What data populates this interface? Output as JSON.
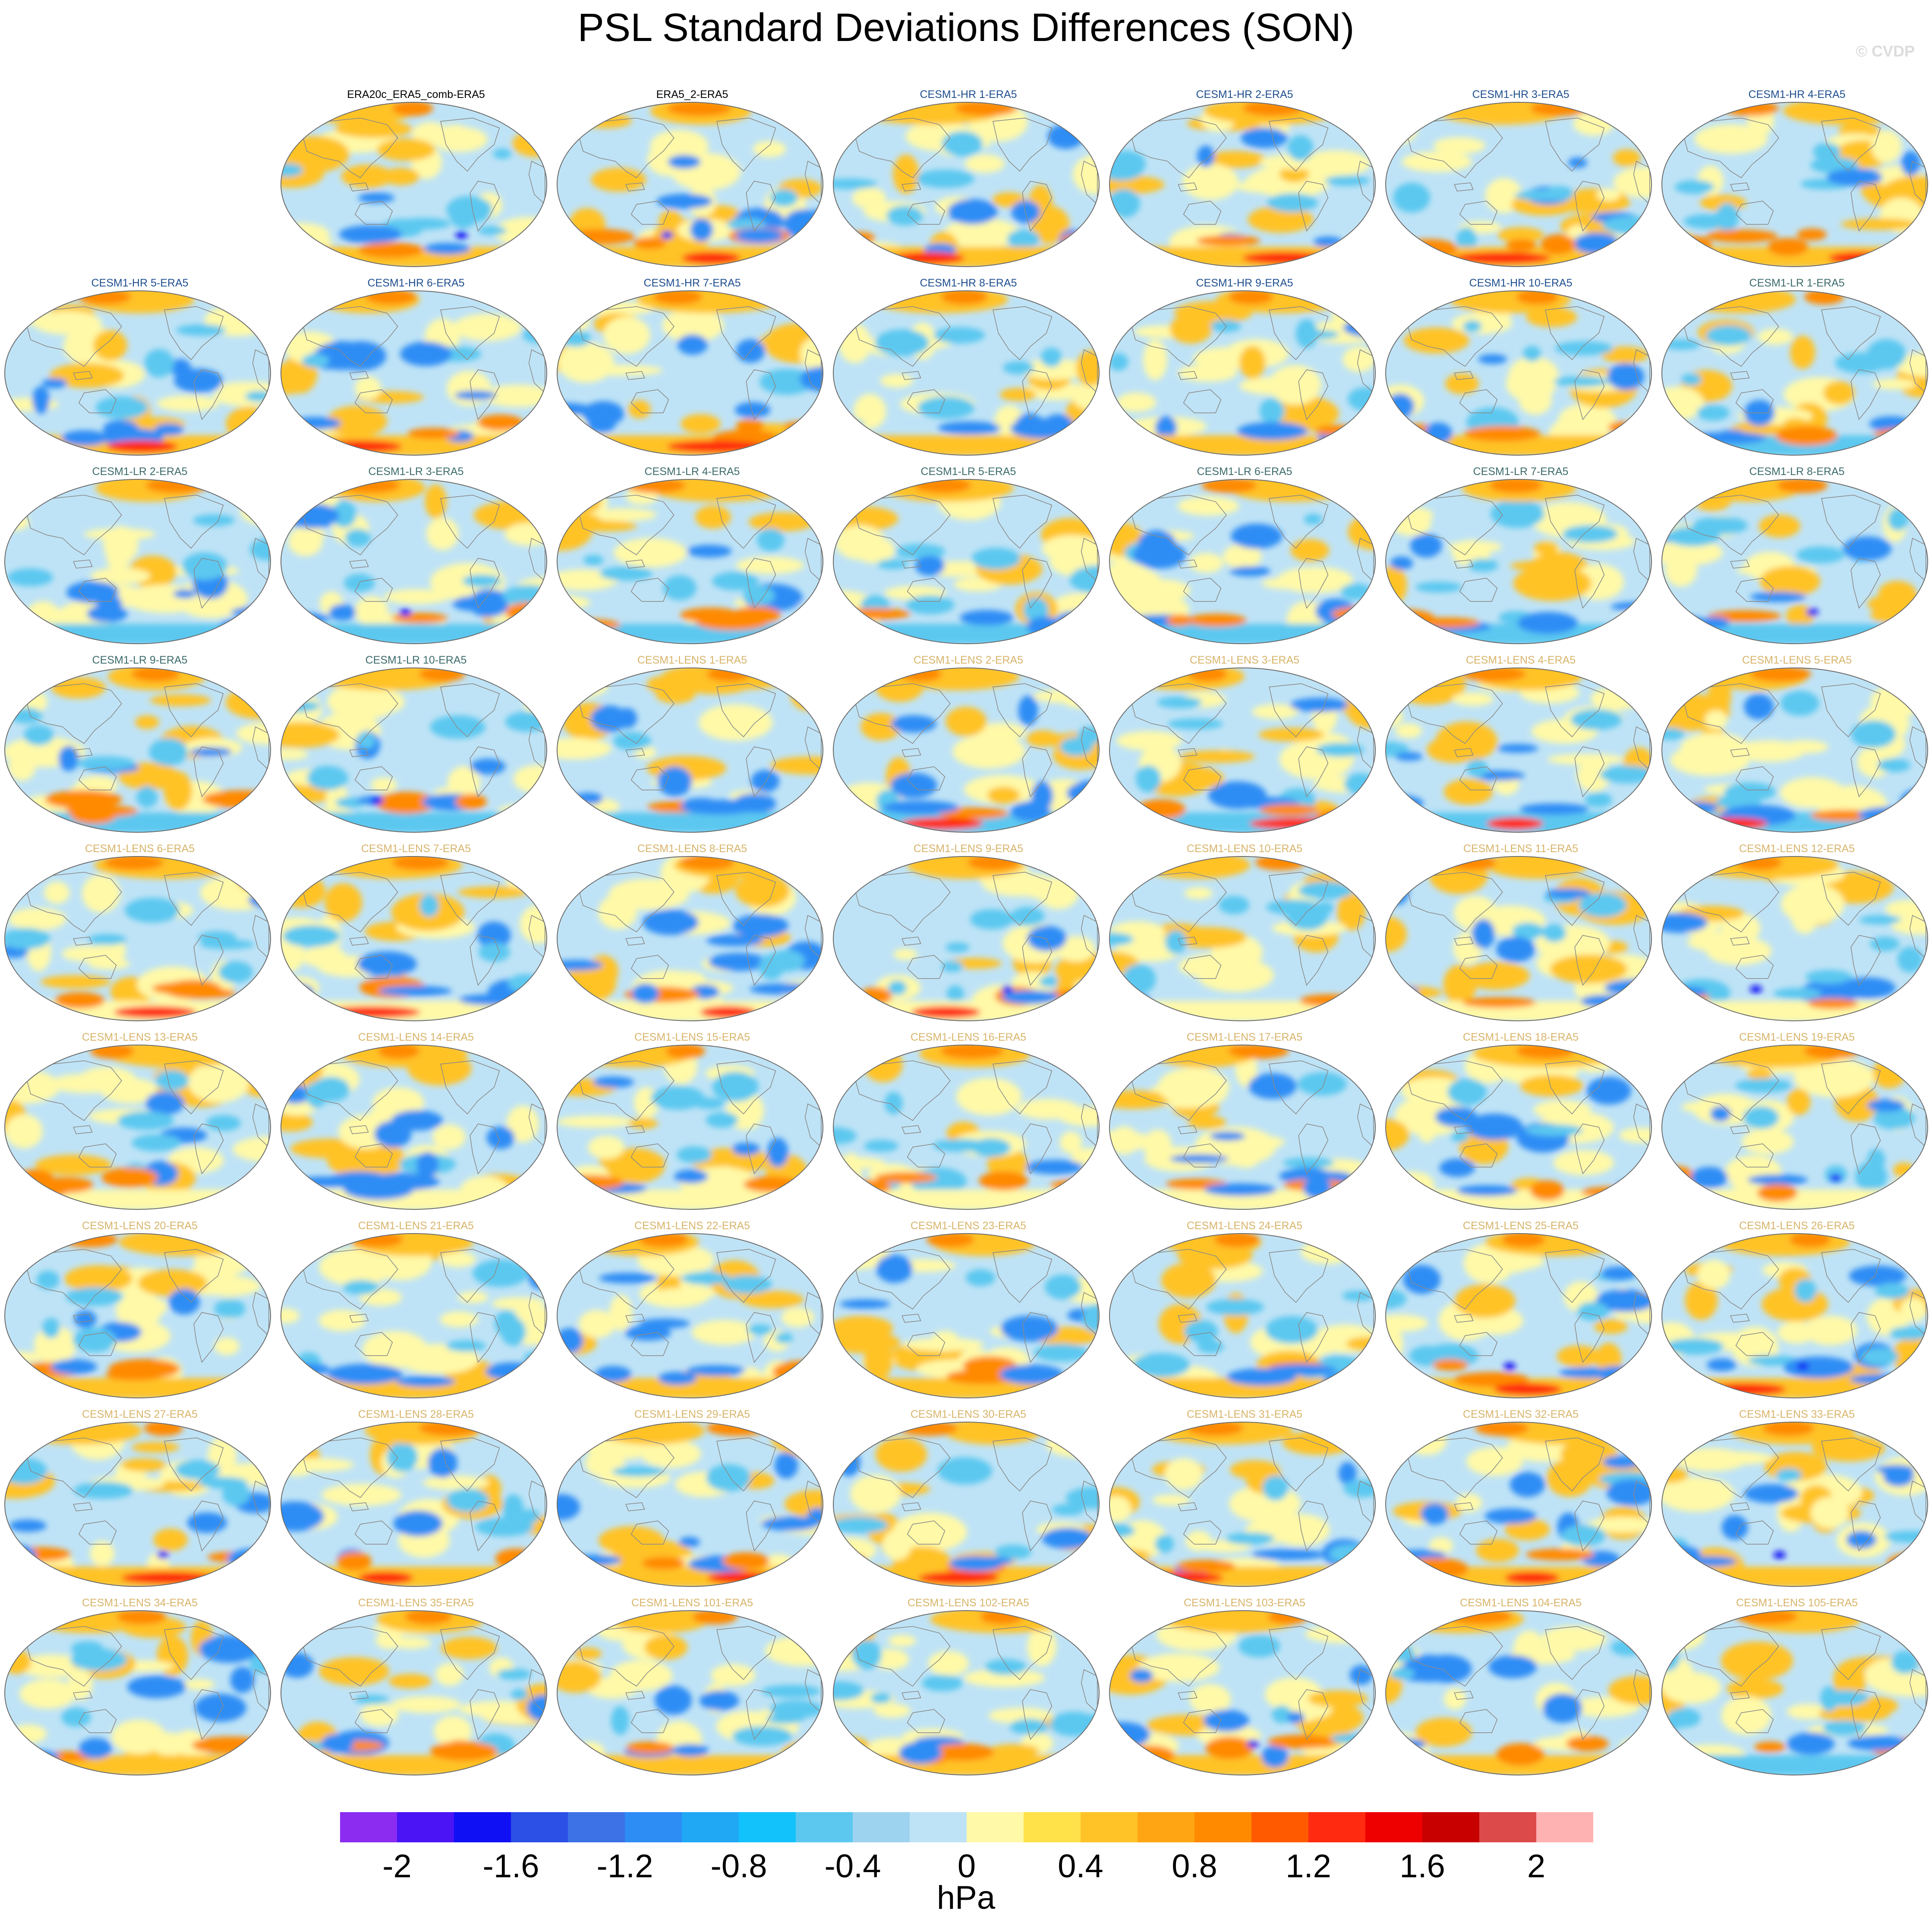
{
  "title": "PSL Standard Deviations Differences (SON)",
  "watermark": "© CVDP",
  "label_colors": {
    "obs": "#000000",
    "hr": "#1f4f8f",
    "lr": "#3d6b6b",
    "lens": "#d8b46a"
  },
  "panels": [
    {
      "label": "ERA20c_ERA5_comb-ERA5",
      "group": "obs",
      "row": 0,
      "col": 1
    },
    {
      "label": "ERA5_2-ERA5",
      "group": "obs",
      "row": 0,
      "col": 2
    },
    {
      "label": "CESM1-HR 1-ERA5",
      "group": "hr",
      "row": 0,
      "col": 3
    },
    {
      "label": "CESM1-HR 2-ERA5",
      "group": "hr",
      "row": 0,
      "col": 4
    },
    {
      "label": "CESM1-HR 3-ERA5",
      "group": "hr",
      "row": 0,
      "col": 5
    },
    {
      "label": "CESM1-HR 4-ERA5",
      "group": "hr",
      "row": 0,
      "col": 6
    },
    {
      "label": "CESM1-HR 5-ERA5",
      "group": "hr",
      "row": 1,
      "col": 0
    },
    {
      "label": "CESM1-HR 6-ERA5",
      "group": "hr",
      "row": 1,
      "col": 1
    },
    {
      "label": "CESM1-HR 7-ERA5",
      "group": "hr",
      "row": 1,
      "col": 2
    },
    {
      "label": "CESM1-HR 8-ERA5",
      "group": "hr",
      "row": 1,
      "col": 3
    },
    {
      "label": "CESM1-HR 9-ERA5",
      "group": "hr",
      "row": 1,
      "col": 4
    },
    {
      "label": "CESM1-HR 10-ERA5",
      "group": "hr",
      "row": 1,
      "col": 5
    },
    {
      "label": "CESM1-LR 1-ERA5",
      "group": "lr",
      "row": 1,
      "col": 6
    },
    {
      "label": "CESM1-LR 2-ERA5",
      "group": "lr",
      "row": 2,
      "col": 0
    },
    {
      "label": "CESM1-LR 3-ERA5",
      "group": "lr",
      "row": 2,
      "col": 1
    },
    {
      "label": "CESM1-LR 4-ERA5",
      "group": "lr",
      "row": 2,
      "col": 2
    },
    {
      "label": "CESM1-LR 5-ERA5",
      "group": "lr",
      "row": 2,
      "col": 3
    },
    {
      "label": "CESM1-LR 6-ERA5",
      "group": "lr",
      "row": 2,
      "col": 4
    },
    {
      "label": "CESM1-LR 7-ERA5",
      "group": "lr",
      "row": 2,
      "col": 5
    },
    {
      "label": "CESM1-LR 8-ERA5",
      "group": "lr",
      "row": 2,
      "col": 6
    },
    {
      "label": "CESM1-LR 9-ERA5",
      "group": "lr",
      "row": 3,
      "col": 0
    },
    {
      "label": "CESM1-LR 10-ERA5",
      "group": "lr",
      "row": 3,
      "col": 1
    },
    {
      "label": "CESM1-LENS 1-ERA5",
      "group": "lens",
      "row": 3,
      "col": 2
    },
    {
      "label": "CESM1-LENS 2-ERA5",
      "group": "lens",
      "row": 3,
      "col": 3
    },
    {
      "label": "CESM1-LENS 3-ERA5",
      "group": "lens",
      "row": 3,
      "col": 4
    },
    {
      "label": "CESM1-LENS 4-ERA5",
      "group": "lens",
      "row": 3,
      "col": 5
    },
    {
      "label": "CESM1-LENS 5-ERA5",
      "group": "lens",
      "row": 3,
      "col": 6
    },
    {
      "label": "CESM1-LENS 6-ERA5",
      "group": "lens",
      "row": 4,
      "col": 0
    },
    {
      "label": "CESM1-LENS 7-ERA5",
      "group": "lens",
      "row": 4,
      "col": 1
    },
    {
      "label": "CESM1-LENS 8-ERA5",
      "group": "lens",
      "row": 4,
      "col": 2
    },
    {
      "label": "CESM1-LENS 9-ERA5",
      "group": "lens",
      "row": 4,
      "col": 3
    },
    {
      "label": "CESM1-LENS 10-ERA5",
      "group": "lens",
      "row": 4,
      "col": 4
    },
    {
      "label": "CESM1-LENS 11-ERA5",
      "group": "lens",
      "row": 4,
      "col": 5
    },
    {
      "label": "CESM1-LENS 12-ERA5",
      "group": "lens",
      "row": 4,
      "col": 6
    },
    {
      "label": "CESM1-LENS 13-ERA5",
      "group": "lens",
      "row": 5,
      "col": 0
    },
    {
      "label": "CESM1-LENS 14-ERA5",
      "group": "lens",
      "row": 5,
      "col": 1
    },
    {
      "label": "CESM1-LENS 15-ERA5",
      "group": "lens",
      "row": 5,
      "col": 2
    },
    {
      "label": "CESM1-LENS 16-ERA5",
      "group": "lens",
      "row": 5,
      "col": 3
    },
    {
      "label": "CESM1-LENS 17-ERA5",
      "group": "lens",
      "row": 5,
      "col": 4
    },
    {
      "label": "CESM1-LENS 18-ERA5",
      "group": "lens",
      "row": 5,
      "col": 5
    },
    {
      "label": "CESM1-LENS 19-ERA5",
      "group": "lens",
      "row": 5,
      "col": 6
    },
    {
      "label": "CESM1-LENS 20-ERA5",
      "group": "lens",
      "row": 6,
      "col": 0
    },
    {
      "label": "CESM1-LENS 21-ERA5",
      "group": "lens",
      "row": 6,
      "col": 1
    },
    {
      "label": "CESM1-LENS 22-ERA5",
      "group": "lens",
      "row": 6,
      "col": 2
    },
    {
      "label": "CESM1-LENS 23-ERA5",
      "group": "lens",
      "row": 6,
      "col": 3
    },
    {
      "label": "CESM1-LENS 24-ERA5",
      "group": "lens",
      "row": 6,
      "col": 4
    },
    {
      "label": "CESM1-LENS 25-ERA5",
      "group": "lens",
      "row": 6,
      "col": 5
    },
    {
      "label": "CESM1-LENS 26-ERA5",
      "group": "lens",
      "row": 6,
      "col": 6
    },
    {
      "label": "CESM1-LENS 27-ERA5",
      "group": "lens",
      "row": 7,
      "col": 0
    },
    {
      "label": "CESM1-LENS 28-ERA5",
      "group": "lens",
      "row": 7,
      "col": 1
    },
    {
      "label": "CESM1-LENS 29-ERA5",
      "group": "lens",
      "row": 7,
      "col": 2
    },
    {
      "label": "CESM1-LENS 30-ERA5",
      "group": "lens",
      "row": 7,
      "col": 3
    },
    {
      "label": "CESM1-LENS 31-ERA5",
      "group": "lens",
      "row": 7,
      "col": 4
    },
    {
      "label": "CESM1-LENS 32-ERA5",
      "group": "lens",
      "row": 7,
      "col": 5
    },
    {
      "label": "CESM1-LENS 33-ERA5",
      "group": "lens",
      "row": 7,
      "col": 6
    },
    {
      "label": "CESM1-LENS 34-ERA5",
      "group": "lens",
      "row": 8,
      "col": 0
    },
    {
      "label": "CESM1-LENS 35-ERA5",
      "group": "lens",
      "row": 8,
      "col": 1
    },
    {
      "label": "CESM1-LENS 101-ERA5",
      "group": "lens",
      "row": 8,
      "col": 2
    },
    {
      "label": "CESM1-LENS 102-ERA5",
      "group": "lens",
      "row": 8,
      "col": 3
    },
    {
      "label": "CESM1-LENS 103-ERA5",
      "group": "lens",
      "row": 8,
      "col": 4
    },
    {
      "label": "CESM1-LENS 104-ERA5",
      "group": "lens",
      "row": 8,
      "col": 5
    },
    {
      "label": "CESM1-LENS 105-ERA5",
      "group": "lens",
      "row": 8,
      "col": 6
    }
  ],
  "colorbar": {
    "units": "hPa",
    "bins": [
      -2.2,
      -2.0,
      -1.8,
      -1.6,
      -1.4,
      -1.2,
      -1.0,
      -0.8,
      -0.6,
      -0.4,
      -0.2,
      0.0,
      0.2,
      0.4,
      0.6,
      0.8,
      1.0,
      1.2,
      1.4,
      1.6,
      1.8,
      2.0,
      2.2
    ],
    "colors": [
      "#8b2cf0",
      "#4a14f5",
      "#1010f5",
      "#2c4fe6",
      "#3c72e6",
      "#2e8df5",
      "#20a8f5",
      "#12c2fa",
      "#5cc8f0",
      "#9dd3ef",
      "#bfe3f6",
      "#fff9a8",
      "#ffe24a",
      "#ffc327",
      "#ffa514",
      "#ff8a00",
      "#ff5a00",
      "#ff2a10",
      "#ee0000",
      "#c80000",
      "#dd4a4a",
      "#ffb2b2"
    ],
    "tick_values": [
      -2.0,
      -1.6,
      -1.2,
      -0.8,
      -0.4,
      0.0,
      0.4,
      0.8,
      1.2,
      1.6,
      2.0
    ],
    "tick_labels": [
      "-2",
      "-1.6",
      "-1.2",
      "-0.8",
      "-0.4",
      "0",
      "0.4",
      "0.8",
      "1.2",
      "1.6",
      "2"
    ]
  },
  "map_palette": {
    "ocean_base": "#bfe3f6",
    "warm_light": "#fff9a8",
    "warm_mid": "#ffc327",
    "warm_strong": "#ff8a00",
    "hot": "#ff2a10",
    "cool_mid": "#5cc8f0",
    "cool_strong": "#2e8df5",
    "cool_deep": "#1010f5",
    "coastline": "#8a8a8a",
    "outline": "#6b6b6b"
  }
}
